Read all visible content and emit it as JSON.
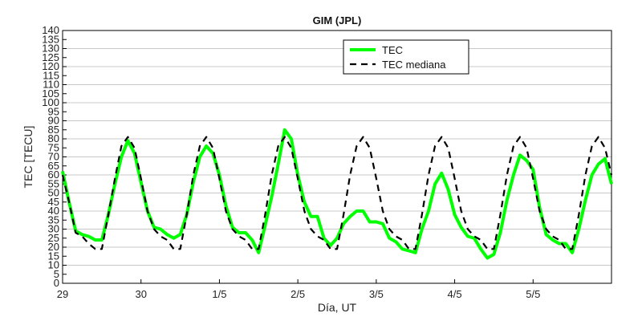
{
  "chart_data": {
    "type": "line",
    "title": "GIM (JPL)",
    "xlabel": "Día, UT",
    "ylabel": "TEC [TECU]",
    "xlim": [
      0,
      7.0
    ],
    "ylim": [
      0,
      140
    ],
    "yticks": [
      0,
      5,
      10,
      15,
      20,
      25,
      30,
      35,
      40,
      45,
      50,
      55,
      60,
      65,
      70,
      75,
      80,
      85,
      90,
      95,
      100,
      105,
      110,
      115,
      120,
      125,
      130,
      135,
      140
    ],
    "xticks": [
      {
        "value": 0,
        "label": "29"
      },
      {
        "value": 1,
        "label": "30"
      },
      {
        "value": 2,
        "label": "1/5"
      },
      {
        "value": 3,
        "label": "2/5"
      },
      {
        "value": 4,
        "label": "3/5"
      },
      {
        "value": 5,
        "label": "4/5"
      },
      {
        "value": 6,
        "label": "5/5"
      }
    ],
    "grid": true,
    "legend_position": "top-center",
    "series": [
      {
        "name": "TEC",
        "color": "#00ff00",
        "style": "solid",
        "x": [
          0,
          0.083,
          0.167,
          0.25,
          0.333,
          0.417,
          0.5,
          0.583,
          0.667,
          0.75,
          0.833,
          0.917,
          1.0,
          1.083,
          1.167,
          1.25,
          1.333,
          1.417,
          1.5,
          1.583,
          1.667,
          1.75,
          1.833,
          1.917,
          2.0,
          2.083,
          2.167,
          2.25,
          2.333,
          2.417,
          2.5,
          2.583,
          2.667,
          2.75,
          2.833,
          2.917,
          3.0,
          3.083,
          3.167,
          3.25,
          3.333,
          3.417,
          3.5,
          3.583,
          3.667,
          3.75,
          3.833,
          3.917,
          4.0,
          4.083,
          4.167,
          4.25,
          4.333,
          4.417,
          4.5,
          4.583,
          4.667,
          4.75,
          4.833,
          4.917,
          5.0,
          5.083,
          5.167,
          5.25,
          5.333,
          5.417,
          5.5,
          5.583,
          5.667,
          5.75,
          5.833,
          5.917,
          6.0,
          6.083,
          6.167,
          6.25,
          6.333,
          6.417,
          6.5,
          6.583,
          6.667,
          6.75,
          6.833,
          6.917,
          7.0
        ],
        "values": [
          62,
          45,
          29,
          27,
          26,
          24,
          24,
          38,
          55,
          70,
          79,
          72,
          56,
          40,
          31,
          30,
          27,
          25,
          27,
          38,
          56,
          70,
          76,
          72,
          60,
          43,
          31,
          28,
          28,
          24,
          17,
          32,
          48,
          66,
          85,
          80,
          60,
          45,
          37,
          37,
          25,
          21,
          25,
          33,
          37,
          40,
          40,
          34,
          34,
          33,
          25,
          23,
          19,
          18,
          17,
          30,
          40,
          55,
          61,
          52,
          38,
          31,
          26,
          25,
          19,
          14,
          16,
          28,
          46,
          60,
          71,
          68,
          63,
          42,
          27,
          24,
          22,
          22,
          17,
          30,
          46,
          60,
          66,
          69,
          55
        ]
      },
      {
        "name": "TEC mediana",
        "color": "#000000",
        "style": "dashed",
        "x": [
          0,
          0.083,
          0.167,
          0.25,
          0.333,
          0.417,
          0.5,
          0.583,
          0.667,
          0.75,
          0.833,
          0.917,
          1.0,
          1.083,
          1.167,
          1.25,
          1.333,
          1.417,
          1.5,
          1.583,
          1.667,
          1.75,
          1.833,
          1.917,
          2.0,
          2.083,
          2.167,
          2.25,
          2.333,
          2.417,
          2.5,
          2.583,
          2.667,
          2.75,
          2.833,
          2.917,
          3.0,
          3.083,
          3.167,
          3.25,
          3.333,
          3.417,
          3.5,
          3.583,
          3.667,
          3.75,
          3.833,
          3.917,
          4.0,
          4.083,
          4.167,
          4.25,
          4.333,
          4.417,
          4.5,
          4.583,
          4.667,
          4.75,
          4.833,
          4.917,
          5.0,
          5.083,
          5.167,
          5.25,
          5.333,
          5.417,
          5.5,
          5.583,
          5.667,
          5.75,
          5.833,
          5.917,
          6.0,
          6.083,
          6.167,
          6.25,
          6.333,
          6.417,
          6.5,
          6.583,
          6.667,
          6.75,
          6.833,
          6.917,
          7.0
        ],
        "values": [
          60,
          45,
          28,
          26,
          22,
          19,
          19,
          38,
          58,
          76,
          81,
          75,
          58,
          40,
          30,
          26,
          24,
          19,
          19,
          38,
          60,
          76,
          81,
          75,
          58,
          40,
          30,
          26,
          24,
          19,
          19,
          38,
          60,
          76,
          81,
          75,
          58,
          40,
          30,
          26,
          24,
          19,
          19,
          38,
          60,
          76,
          81,
          75,
          58,
          40,
          30,
          26,
          24,
          19,
          19,
          38,
          60,
          76,
          81,
          75,
          58,
          40,
          30,
          26,
          24,
          19,
          19,
          38,
          60,
          76,
          81,
          75,
          58,
          40,
          30,
          26,
          24,
          19,
          19,
          38,
          60,
          76,
          81,
          75,
          60
        ]
      }
    ]
  }
}
